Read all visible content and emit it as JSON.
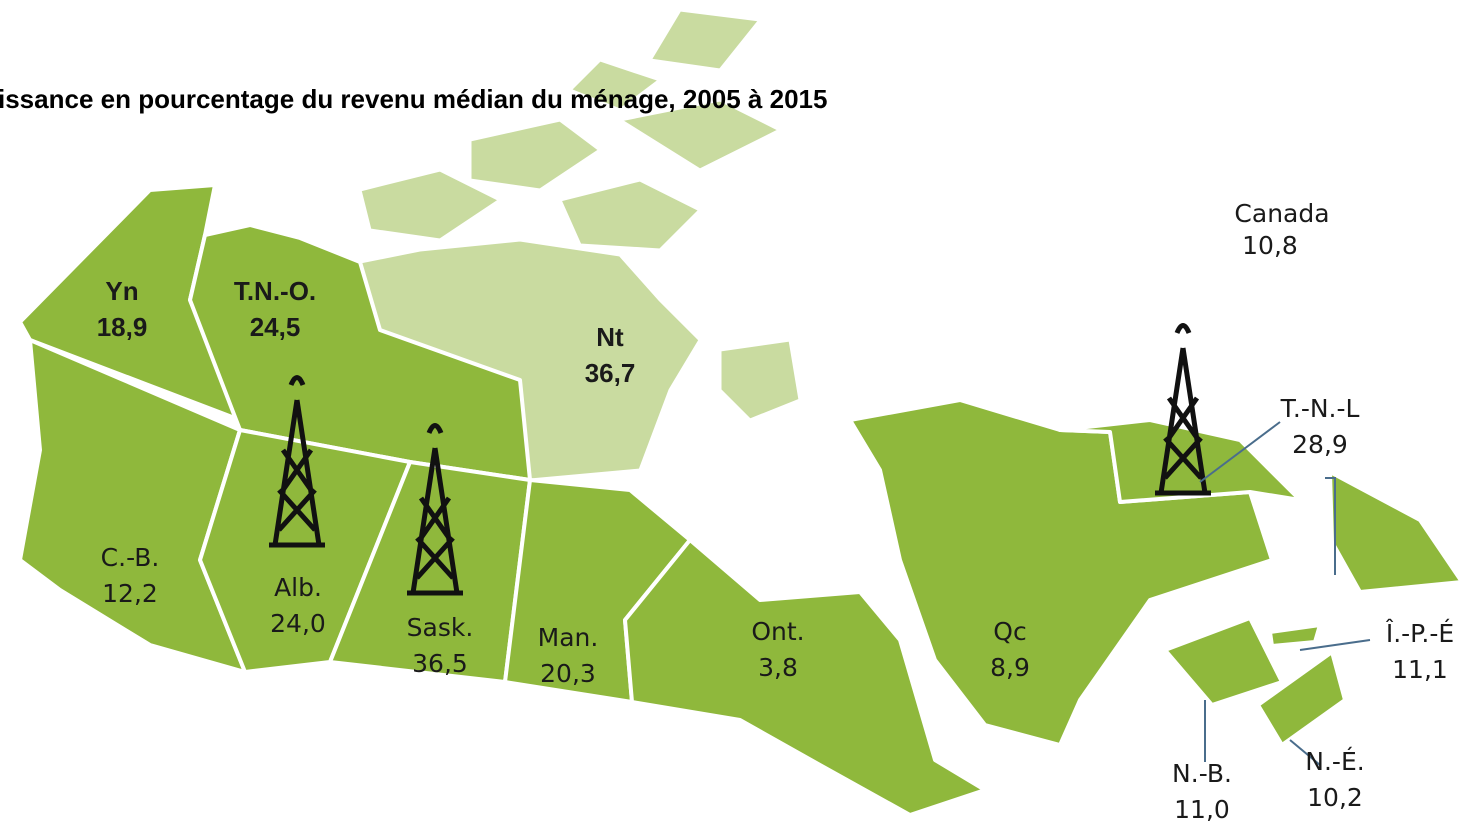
{
  "title": "issance en pourcentage du revenu médian du ménage, 2005 à 2015",
  "national": {
    "name": "Canada",
    "value": "10,8"
  },
  "regions": [
    {
      "name": "Yn",
      "value": "18,9"
    },
    {
      "name": "T.N.-O.",
      "value": "24,5"
    },
    {
      "name": "Nt",
      "value": "36,7"
    },
    {
      "name": "C.-B.",
      "value": "12,2"
    },
    {
      "name": "Alb.",
      "value": "24,0"
    },
    {
      "name": "Sask.",
      "value": "36,5"
    },
    {
      "name": "Man.",
      "value": "20,3"
    },
    {
      "name": "Ont.",
      "value": "3,8"
    },
    {
      "name": "Qc",
      "value": "8,9"
    },
    {
      "name": "T.-N.-L",
      "value": "28,9"
    },
    {
      "name": "Î.-P.-É",
      "value": "11,1"
    },
    {
      "name": "N.-B.",
      "value": "11,0"
    },
    {
      "name": "N.-É.",
      "value": "10,2"
    }
  ]
}
